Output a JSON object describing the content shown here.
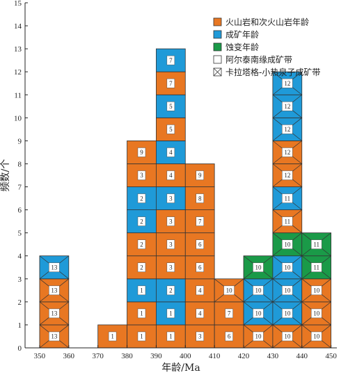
{
  "chart_data": {
    "type": "bar",
    "xlabel": "年龄/Ma",
    "ylabel": "频数/个",
    "xlim": [
      345,
      452
    ],
    "ylim": [
      0,
      15
    ],
    "xticks": [
      350,
      360,
      370,
      380,
      390,
      400,
      410,
      420,
      430,
      440,
      450
    ],
    "yticks": [
      0,
      1,
      2,
      3,
      4,
      5,
      6,
      7,
      8,
      9,
      10,
      11,
      12,
      13,
      14,
      15
    ],
    "bin_width": 10,
    "grid": false,
    "legend_position": "top-right",
    "colors": {
      "volcanic": "#e87722",
      "mineralization": "#1f9ad8",
      "alteration": "#1a9a48",
      "altay": "#ffffff",
      "kalatag": "#ffffff"
    },
    "legend": [
      {
        "key": "volcanic",
        "label": "火山岩和次火山岩年龄",
        "crossed": false
      },
      {
        "key": "mineralization",
        "label": "成矿年龄",
        "crossed": false
      },
      {
        "key": "alteration",
        "label": "蚀变年龄",
        "crossed": false
      },
      {
        "key": "altay",
        "label": "阿尔泰南缘成矿带",
        "crossed": false
      },
      {
        "key": "kalatag",
        "label": "卡拉塔格-小热泉子成矿带",
        "crossed": true
      }
    ],
    "bars": [
      {
        "x": 350,
        "cells": [
          {
            "label": "13",
            "type": "volcanic",
            "crossed": true
          },
          {
            "label": "13",
            "type": "volcanic",
            "crossed": true
          },
          {
            "label": "13",
            "type": "volcanic",
            "crossed": true
          },
          {
            "label": "13",
            "type": "mineralization",
            "crossed": true
          }
        ]
      },
      {
        "x": 370,
        "cells": [
          {
            "label": "1",
            "type": "volcanic",
            "crossed": false
          }
        ]
      },
      {
        "x": 380,
        "cells": [
          {
            "label": "1",
            "type": "volcanic",
            "crossed": false
          },
          {
            "label": "1",
            "type": "volcanic",
            "crossed": false
          },
          {
            "label": "1",
            "type": "mineralization",
            "crossed": false
          },
          {
            "label": "2",
            "type": "volcanic",
            "crossed": false
          },
          {
            "label": "2",
            "type": "volcanic",
            "crossed": false
          },
          {
            "label": "2",
            "type": "mineralization",
            "crossed": false
          },
          {
            "label": "2",
            "type": "mineralization",
            "crossed": false
          },
          {
            "label": "3",
            "type": "volcanic",
            "crossed": false
          },
          {
            "label": "9",
            "type": "volcanic",
            "crossed": false
          }
        ]
      },
      {
        "x": 390,
        "cells": [
          {
            "label": "1",
            "type": "volcanic",
            "crossed": false
          },
          {
            "label": "1",
            "type": "mineralization",
            "crossed": false
          },
          {
            "label": "2",
            "type": "mineralization",
            "crossed": false
          },
          {
            "label": "3",
            "type": "volcanic",
            "crossed": false
          },
          {
            "label": "3",
            "type": "volcanic",
            "crossed": false
          },
          {
            "label": "3",
            "type": "volcanic",
            "crossed": false
          },
          {
            "label": "3",
            "type": "mineralization",
            "crossed": false
          },
          {
            "label": "4",
            "type": "volcanic",
            "crossed": false
          },
          {
            "label": "4",
            "type": "mineralization",
            "crossed": false
          },
          {
            "label": "5",
            "type": "volcanic",
            "crossed": false
          },
          {
            "label": "5",
            "type": "mineralization",
            "crossed": false
          },
          {
            "label": "7",
            "type": "volcanic",
            "crossed": false
          },
          {
            "label": "7",
            "type": "mineralization",
            "crossed": false
          }
        ]
      },
      {
        "x": 400,
        "cells": [
          {
            "label": "3",
            "type": "volcanic",
            "crossed": false
          },
          {
            "label": "4",
            "type": "volcanic",
            "crossed": false
          },
          {
            "label": "4",
            "type": "volcanic",
            "crossed": false
          },
          {
            "label": "6",
            "type": "volcanic",
            "crossed": false
          },
          {
            "label": "6",
            "type": "volcanic",
            "crossed": false
          },
          {
            "label": "7",
            "type": "volcanic",
            "crossed": false
          },
          {
            "label": "8",
            "type": "volcanic",
            "crossed": false
          },
          {
            "label": "9",
            "type": "volcanic",
            "crossed": false
          }
        ]
      },
      {
        "x": 410,
        "cells": [
          {
            "label": "6",
            "type": "volcanic",
            "crossed": false
          },
          {
            "label": "7",
            "type": "volcanic",
            "crossed": false
          },
          {
            "label": "10",
            "type": "volcanic",
            "crossed": true
          }
        ]
      },
      {
        "x": 420,
        "cells": [
          {
            "label": "10",
            "type": "volcanic",
            "crossed": true
          },
          {
            "label": "10",
            "type": "mineralization",
            "crossed": true
          },
          {
            "label": "10",
            "type": "mineralization",
            "crossed": true
          },
          {
            "label": "10",
            "type": "alteration",
            "crossed": true
          }
        ]
      },
      {
        "x": 430,
        "cells": [
          {
            "label": "10",
            "type": "volcanic",
            "crossed": true
          },
          {
            "label": "10",
            "type": "mineralization",
            "crossed": true
          },
          {
            "label": "10",
            "type": "mineralization",
            "crossed": true
          },
          {
            "label": "10",
            "type": "mineralization",
            "crossed": true
          },
          {
            "label": "10",
            "type": "alteration",
            "crossed": true
          },
          {
            "label": "11",
            "type": "volcanic",
            "crossed": true
          },
          {
            "label": "11",
            "type": "mineralization",
            "crossed": true
          },
          {
            "label": "12",
            "type": "volcanic",
            "crossed": true
          },
          {
            "label": "12",
            "type": "volcanic",
            "crossed": true
          },
          {
            "label": "12",
            "type": "mineralization",
            "crossed": true
          },
          {
            "label": "12",
            "type": "mineralization",
            "crossed": true
          },
          {
            "label": "12",
            "type": "mineralization",
            "crossed": true
          }
        ]
      },
      {
        "x": 440,
        "cells": [
          {
            "label": "10",
            "type": "volcanic",
            "crossed": true
          },
          {
            "label": "10",
            "type": "volcanic",
            "crossed": true
          },
          {
            "label": "10",
            "type": "volcanic",
            "crossed": true
          },
          {
            "label": "11",
            "type": "alteration",
            "crossed": true
          },
          {
            "label": "11",
            "type": "alteration",
            "crossed": true
          }
        ]
      }
    ]
  }
}
